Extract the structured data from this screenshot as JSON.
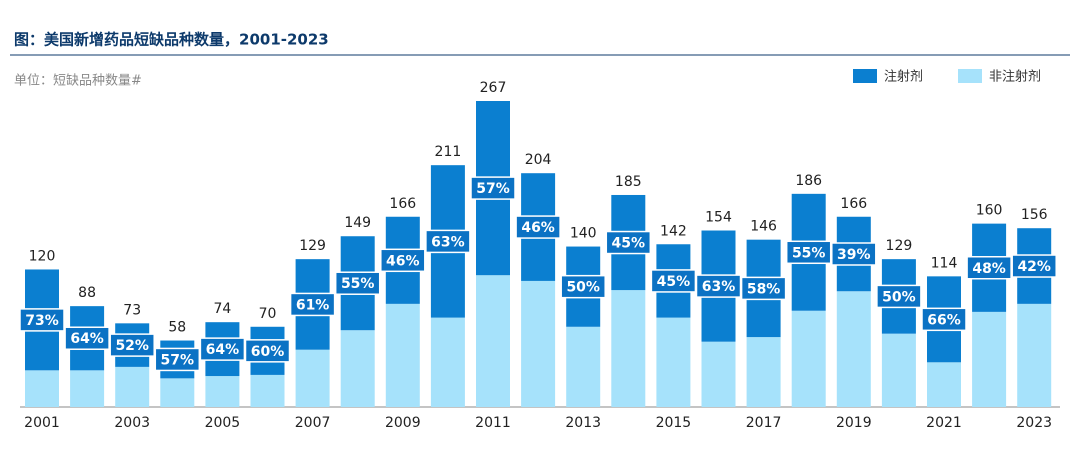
{
  "chart_data": {
    "type": "stacked_bar",
    "title": "图：美国新增药品短缺品种数量，2001-2023",
    "subtitle": "单位：短缺品种数量#",
    "categories": [
      "2001",
      null,
      "2003",
      null,
      "2005",
      null,
      "2007",
      null,
      "2009",
      null,
      "2011",
      null,
      "2013",
      null,
      "2015",
      null,
      "2017",
      null,
      "2019",
      null,
      "2021",
      null,
      "2023"
    ],
    "series": [
      {
        "name": "注射剂",
        "color": "#0b7fd0",
        "values": [
          88,
          56,
          38,
          33,
          47,
          42,
          79,
          82,
          76,
          133,
          152,
          94,
          70,
          83,
          64,
          97,
          85,
          102,
          65,
          65,
          75,
          77,
          66
        ]
      },
      {
        "name": "非注射剂",
        "color": "#a6e2fb",
        "values": [
          32,
          32,
          35,
          25,
          27,
          28,
          50,
          67,
          90,
          78,
          115,
          110,
          70,
          102,
          78,
          57,
          61,
          84,
          101,
          64,
          39,
          83,
          90
        ]
      }
    ],
    "totals": [
      120,
      88,
      73,
      58,
      74,
      70,
      129,
      149,
      166,
      211,
      267,
      204,
      140,
      185,
      142,
      154,
      146,
      186,
      166,
      129,
      114,
      160,
      156
    ],
    "share_labels": [
      "73%",
      "64%",
      "52%",
      "57%",
      "64%",
      "60%",
      "61%",
      "55%",
      "46%",
      "63%",
      "57%",
      "46%",
      "50%",
      "45%",
      "45%",
      "63%",
      "58%",
      "55%",
      "39%",
      "50%",
      "66%",
      "48%",
      "42%"
    ],
    "legend": "top-right"
  }
}
